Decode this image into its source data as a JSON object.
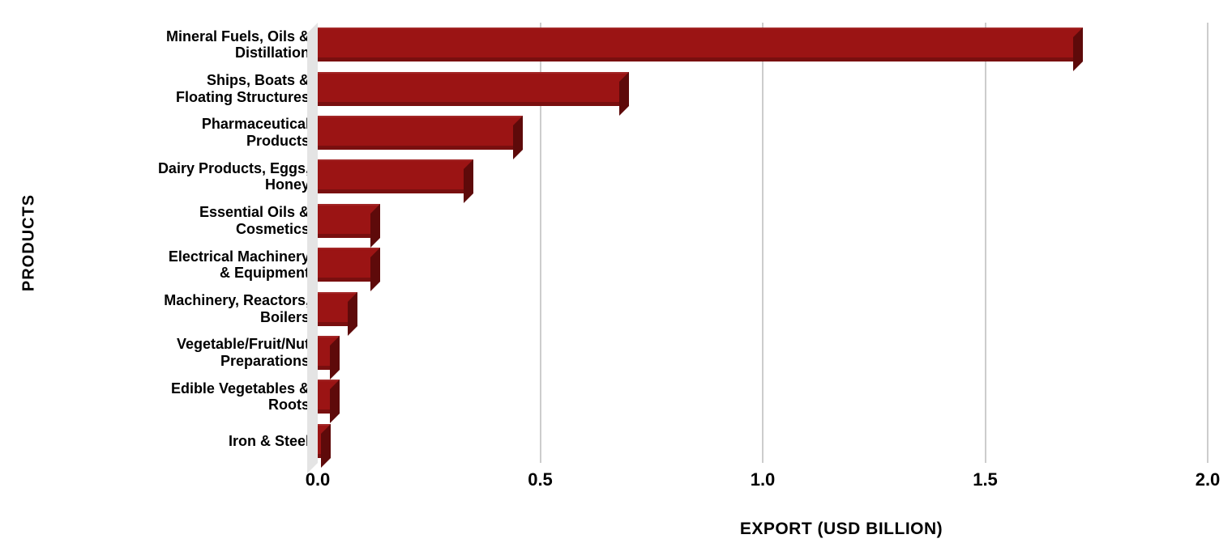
{
  "chart_data": {
    "type": "bar",
    "orientation": "horizontal",
    "title": "",
    "xlabel": "EXPORT (USD BILLION)",
    "ylabel": "PRODUCTS",
    "categories": [
      "Mineral Fuels, Oils &\nDistillation",
      "Ships, Boats &\nFloating Structures",
      "Pharmaceutical\nProducts",
      "Dairy Products, Eggs,\nHoney",
      "Essential Oils &\nCosmetics",
      "Electrical Machinery\n& Equipment",
      "Machinery, Reactors,\nBoilers",
      "Vegetable/Fruit/Nut\nPreparations",
      "Edible Vegetables &\nRoots",
      "Iron & Steel"
    ],
    "values": [
      1.72,
      0.7,
      0.46,
      0.35,
      0.14,
      0.14,
      0.09,
      0.05,
      0.05,
      0.03
    ],
    "xlim": [
      0,
      2
    ],
    "x_ticks": [
      "0.0",
      "0.5",
      "1.0",
      "1.5",
      "2.0"
    ],
    "x_tick_values": [
      0,
      0.5,
      1.0,
      1.5,
      2.0
    ],
    "grid": true,
    "legend": false,
    "style": "3d-horizontal-bars",
    "colors": {
      "bar": "#9b1414",
      "bar_side": "#5e0a0a",
      "wall": "#e4e4e4",
      "grid": "#cdcdcd",
      "text": "#000000",
      "background": "#ffffff"
    }
  }
}
